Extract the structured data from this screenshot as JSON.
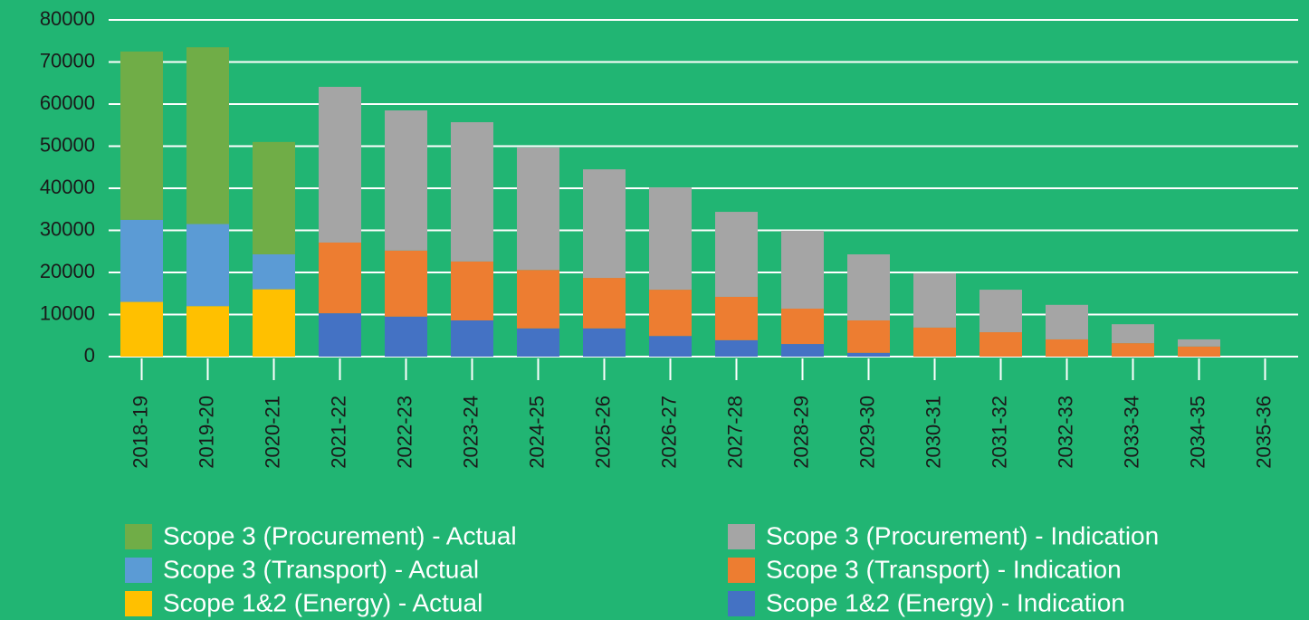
{
  "chart_data": {
    "type": "stacked_bar",
    "categories": [
      "2018-19",
      "2019-20",
      "2020-21",
      "2021-22",
      "2022-23",
      "2023-24",
      "2024-25",
      "2025-26",
      "2026-27",
      "2027-28",
      "2028-29",
      "2029-30",
      "2030-31",
      "2031-32",
      "2032-33",
      "2033-34",
      "2034-35",
      "2035-36"
    ],
    "series": [
      {
        "name": "Scope 1&2 (Energy) - Actual",
        "color": "#ffc000",
        "values": [
          13000,
          12000,
          16000,
          null,
          null,
          null,
          null,
          null,
          null,
          null,
          null,
          null,
          null,
          null,
          null,
          null,
          null,
          null
        ]
      },
      {
        "name": "Scope 3 (Transport) - Actual",
        "color": "#5b9bd5",
        "values": [
          19500,
          19500,
          8300,
          null,
          null,
          null,
          null,
          null,
          null,
          null,
          null,
          null,
          null,
          null,
          null,
          null,
          null,
          null
        ]
      },
      {
        "name": "Scope 3 (Procurement) - Actual",
        "color": "#70ad47",
        "values": [
          40000,
          42000,
          26700,
          null,
          null,
          null,
          null,
          null,
          null,
          null,
          null,
          null,
          null,
          null,
          null,
          null,
          null,
          null
        ]
      },
      {
        "name": "Scope 1&2 (Energy) - Indication",
        "color": "#4472c4",
        "values": [
          null,
          null,
          null,
          10300,
          9500,
          8600,
          6700,
          6700,
          4900,
          3900,
          3000,
          900,
          null,
          null,
          null,
          null,
          null,
          null
        ]
      },
      {
        "name": "Scope 3 (Transport) - Indication",
        "color": "#ed7d31",
        "values": [
          null,
          null,
          null,
          16800,
          15700,
          14000,
          13900,
          12000,
          11000,
          10300,
          8400,
          7700,
          6900,
          5800,
          4100,
          3200,
          2400,
          null
        ]
      },
      {
        "name": "Scope 3 (Procurement) - Indication",
        "color": "#a5a5a5",
        "values": [
          null,
          null,
          null,
          37000,
          33300,
          33100,
          29100,
          25800,
          24300,
          20200,
          18500,
          15700,
          12900,
          10100,
          8200,
          4500,
          1700,
          null
        ]
      }
    ],
    "ylim": [
      0,
      80000
    ],
    "yticks": [
      0,
      10000,
      20000,
      30000,
      40000,
      50000,
      60000,
      70000,
      80000
    ],
    "grid": true
  }
}
